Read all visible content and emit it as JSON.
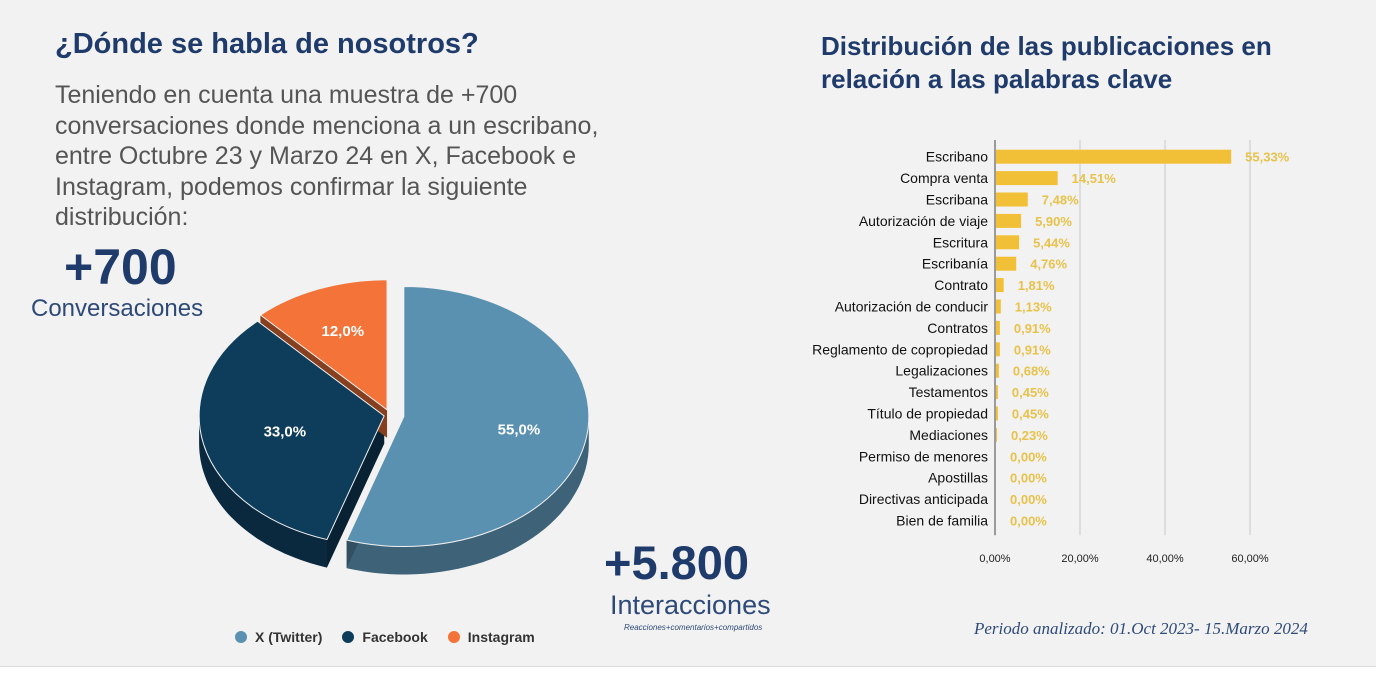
{
  "left": {
    "title": "¿Dónde se habla de nosotros?",
    "intro": "Teniendo en cuenta una muestra de +700 conversaciones donde menciona a un escribano, entre Octubre 23 y Marzo 24 en X, Facebook e Instagram, podemos confirmar la siguiente distribución:",
    "conversations_value": "+700",
    "conversations_label": "Conversaciones",
    "interactions_value": "+5.800",
    "interactions_label": "Interacciones",
    "interactions_sub": "Reacciones+comentarios+compartidos"
  },
  "right": {
    "title": "Distribución de las publicaciones en relación a las palabras clave",
    "period": "Periodo analizado: 01.Oct 2023- 15.Marzo 2024"
  },
  "chart_data": [
    {
      "type": "pie",
      "style": "3d-exploded",
      "categories": [
        "X (Twitter)",
        "Facebook",
        "Instagram"
      ],
      "values": [
        55.0,
        33.0,
        12.0
      ],
      "data_labels": [
        "55,0%",
        "33,0%",
        "12,0%"
      ],
      "colors": [
        "#5b91b0",
        "#0e3d5c",
        "#f37338"
      ],
      "legend_position": "bottom"
    },
    {
      "type": "bar",
      "orientation": "horizontal",
      "categories": [
        "Escribano",
        "Compra venta",
        "Escribana",
        "Autorización de viaje",
        "Escritura",
        "Escribanía",
        "Contrato",
        "Autorización de conducir",
        "Contratos",
        "Reglamento de copropiedad",
        "Legalizaciones",
        "Testamentos",
        "Título de propiedad",
        "Mediaciones",
        "Permiso de menores",
        "Apostillas",
        "Directivas anticipada",
        "Bien de familia"
      ],
      "values": [
        55.33,
        14.51,
        7.48,
        5.9,
        5.44,
        4.76,
        1.81,
        1.13,
        0.91,
        0.91,
        0.68,
        0.45,
        0.45,
        0.23,
        0.0,
        0.0,
        0.0,
        0.0
      ],
      "data_labels": [
        "55,33%",
        "14,51%",
        "7,48%",
        "5,90%",
        "5,44%",
        "4,76%",
        "1,81%",
        "1,13%",
        "0,91%",
        "0,91%",
        "0,68%",
        "0,45%",
        "0,45%",
        "0,23%",
        "0,00%",
        "0,00%",
        "0,00%",
        "0,00%"
      ],
      "xlim": [
        0,
        60
      ],
      "xticks": [
        "0,00%",
        "20,00%",
        "40,00%",
        "60,00%"
      ],
      "grid": true,
      "bar_color": "#f2c037",
      "label_color": "#e8c24a"
    }
  ]
}
